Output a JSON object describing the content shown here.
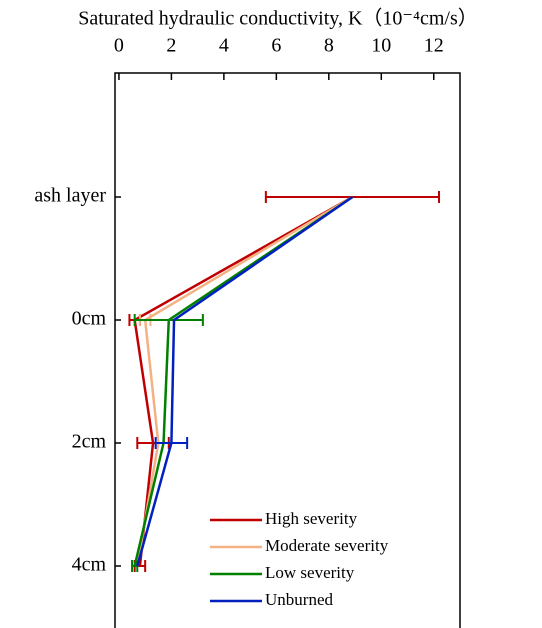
{
  "chart_data": {
    "type": "line",
    "orientation": "horizontal",
    "title": "Saturated hydraulic conductivity, K（10⁻⁴cm/s）",
    "categories": [
      "ash layer",
      "0cm",
      "2cm",
      "4cm"
    ],
    "xlim": [
      -0.15,
      13
    ],
    "xticks": [
      0,
      2,
      4,
      6,
      8,
      10,
      12
    ],
    "legend": "lower right",
    "series": [
      {
        "name": "High severity",
        "color": "#c00000",
        "values": [
          8.9,
          0.6,
          1.3,
          0.8
        ],
        "errors": [
          3.3,
          0.2,
          0.6,
          0.2
        ]
      },
      {
        "name": "Moderate severity",
        "color": "#f4b183",
        "values": [
          8.9,
          1.0,
          1.5,
          0.7
        ],
        "errors": [
          null,
          0.2,
          null,
          null
        ]
      },
      {
        "name": "Low severity",
        "color": "#008000",
        "values": [
          8.9,
          1.9,
          1.7,
          0.6
        ],
        "errors": [
          null,
          1.3,
          null,
          0.1
        ]
      },
      {
        "name": "Unburned",
        "color": "#0020c0",
        "values": [
          8.9,
          2.1,
          2.0,
          0.7
        ],
        "errors": [
          null,
          null,
          0.6,
          null
        ]
      }
    ]
  }
}
